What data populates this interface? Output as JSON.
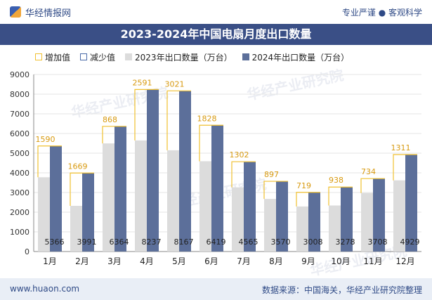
{
  "header": {
    "brand": "华经情报网",
    "tagline": "专业严谨 ● 客观科学",
    "logo_icon": "huajing-logo-icon"
  },
  "title": "2023-2024年中国电扇月度出口数量",
  "legend": {
    "increase": "增加值",
    "decrease": "减少值",
    "y2023": "2023年出口数量（万台）",
    "y2024": "2024年出口数量（万台）"
  },
  "colors": {
    "y2023": "#dcdcdc",
    "y2024": "#5c6f9a",
    "increase": "#f0c030",
    "decrease": "#4a6aa8",
    "title_bg": "#3a4f86"
  },
  "watermark": "华经产业研究院",
  "chart_data": {
    "type": "bar",
    "categories": [
      "1月",
      "2月",
      "3月",
      "4月",
      "5月",
      "6月",
      "7月",
      "8月",
      "9月",
      "10月",
      "11月",
      "12月"
    ],
    "series": [
      {
        "name": "2023年出口数量（万台）",
        "values": [
          3776,
          2322,
          5496,
          5646,
          5146,
          4591,
          3263,
          2673,
          2289,
          2340,
          2974,
          3618
        ]
      },
      {
        "name": "2024年出口数量（万台）",
        "values": [
          5366,
          3991,
          6364,
          8237,
          8167,
          6419,
          4565,
          3570,
          3008,
          3278,
          3708,
          4929
        ]
      }
    ],
    "change_labels": [
      1590,
      1669,
      868,
      2591,
      3021,
      1828,
      1302,
      897,
      719,
      938,
      734,
      1311
    ],
    "ylim": [
      0,
      9000
    ],
    "yticks": [
      0,
      1000,
      2000,
      3000,
      4000,
      5000,
      6000,
      7000,
      8000,
      9000
    ],
    "xlabel": "",
    "ylabel": "",
    "legend_position": "top"
  },
  "footer": {
    "left": "www.huaon.com",
    "right": "数据来源：中国海关，华经产业研究院整理"
  }
}
